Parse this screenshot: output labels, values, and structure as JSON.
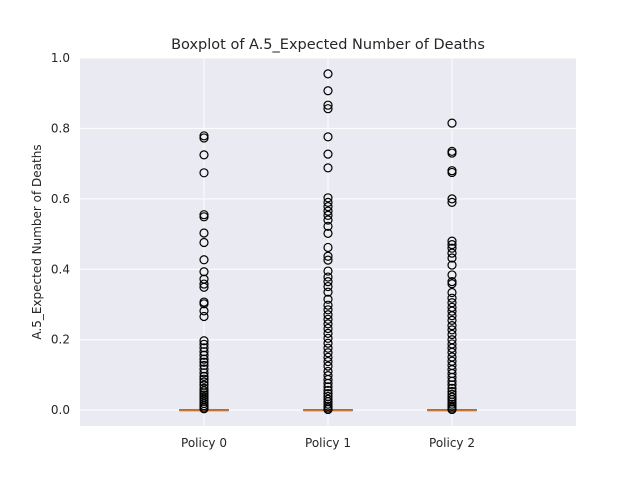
{
  "chart_data": {
    "type": "box",
    "title": "Boxplot of A.5_Expected Number of Deaths",
    "xlabel": "",
    "ylabel": "A.5_Expected Number of Deaths",
    "ylim": [
      -0.045,
      1.0
    ],
    "yticks": [
      0.0,
      0.2,
      0.4,
      0.6,
      0.8,
      1.0
    ],
    "ytick_labels": [
      "0.0",
      "0.2",
      "0.4",
      "0.6",
      "0.8",
      "1.0"
    ],
    "grid": true,
    "categories": [
      "Policy 0",
      "Policy 1",
      "Policy 2"
    ],
    "series": [
      {
        "category": "Policy 0",
        "q1": 0.0,
        "median": 0.0,
        "q3": 0.0,
        "whisker_low": 0.0,
        "whisker_high": 0.0,
        "outliers": [
          0.779,
          0.773,
          0.725,
          0.674,
          0.555,
          0.549,
          0.503,
          0.476,
          0.427,
          0.393,
          0.372,
          0.358,
          0.349,
          0.307,
          0.302,
          0.282,
          0.266,
          0.197,
          0.187,
          0.177,
          0.166,
          0.156,
          0.145,
          0.136,
          0.127,
          0.117,
          0.106,
          0.096,
          0.088,
          0.08,
          0.071,
          0.062,
          0.055,
          0.049,
          0.043,
          0.037,
          0.031,
          0.025,
          0.019,
          0.013,
          0.008,
          0.004
        ]
      },
      {
        "category": "Policy 1",
        "q1": 0.0,
        "median": 0.0,
        "q3": 0.0,
        "whisker_low": 0.0,
        "whisker_high": 0.0,
        "outliers": [
          0.955,
          0.907,
          0.866,
          0.856,
          0.776,
          0.727,
          0.688,
          0.603,
          0.59,
          0.578,
          0.565,
          0.553,
          0.54,
          0.522,
          0.502,
          0.462,
          0.437,
          0.426,
          0.395,
          0.378,
          0.365,
          0.351,
          0.335,
          0.315,
          0.298,
          0.285,
          0.271,
          0.258,
          0.245,
          0.232,
          0.218,
          0.204,
          0.19,
          0.176,
          0.163,
          0.15,
          0.138,
          0.125,
          0.11,
          0.098,
          0.087,
          0.076,
          0.066,
          0.056,
          0.047,
          0.039,
          0.031,
          0.024,
          0.017,
          0.011,
          0.006,
          0.002
        ]
      },
      {
        "category": "Policy 2",
        "q1": 0.0,
        "median": 0.0,
        "q3": 0.0,
        "whisker_low": 0.0,
        "whisker_high": 0.0,
        "outliers": [
          0.815,
          0.735,
          0.73,
          0.68,
          0.675,
          0.6,
          0.59,
          0.48,
          0.47,
          0.46,
          0.446,
          0.432,
          0.412,
          0.384,
          0.365,
          0.359,
          0.334,
          0.318,
          0.305,
          0.292,
          0.281,
          0.268,
          0.255,
          0.24,
          0.228,
          0.215,
          0.2,
          0.188,
          0.176,
          0.164,
          0.151,
          0.139,
          0.127,
          0.115,
          0.104,
          0.093,
          0.082,
          0.072,
          0.062,
          0.053,
          0.045,
          0.037,
          0.03,
          0.023,
          0.017,
          0.011,
          0.006,
          0.002
        ]
      }
    ],
    "colors": {
      "plot_background": "#eaeaf2",
      "grid": "#ffffff",
      "median": "#e5853a",
      "flier_edge": "#000000"
    }
  }
}
